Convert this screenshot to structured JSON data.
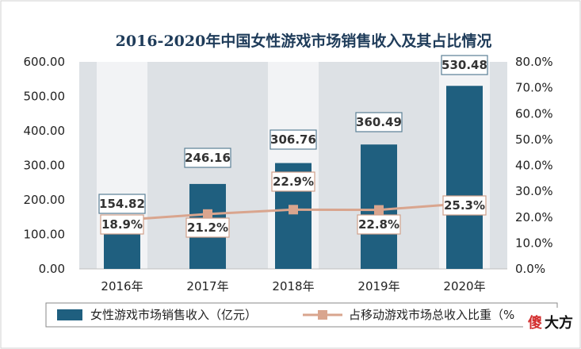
{
  "chart_data": {
    "type": "bar",
    "title": "2016-2020年中国女性游戏市场销售收入及其占比情况",
    "categories": [
      "2016年",
      "2017年",
      "2018年",
      "2019年",
      "2020年"
    ],
    "series": [
      {
        "name": "女性游戏市场销售收入（亿元）",
        "type": "bar",
        "axis": "left",
        "values": [
          154.82,
          246.16,
          306.76,
          360.49,
          530.48
        ],
        "labels": [
          "154.82",
          "246.16",
          "306.76",
          "360.49",
          "530.48"
        ],
        "color": "#1f5f7f"
      },
      {
        "name": "占移动游戏市场总收入比重（%",
        "type": "line",
        "axis": "right",
        "values": [
          18.9,
          21.2,
          22.9,
          22.8,
          25.3
        ],
        "labels": [
          "18.9%",
          "21.2%",
          "22.9%",
          "22.8%",
          "25.3%"
        ],
        "color": "#d9a58e"
      }
    ],
    "y_left": {
      "min": 0,
      "max": 600,
      "step": 100,
      "tick_labels": [
        "0.00",
        "100.00",
        "200.00",
        "300.00",
        "400.00",
        "500.00",
        "600.00"
      ]
    },
    "y_right": {
      "min": 0,
      "max": 80,
      "step": 10,
      "tick_labels": [
        "0.0%",
        "10.0%",
        "20.0%",
        "30.0%",
        "40.0%",
        "50.0%",
        "60.0%",
        "70.0%",
        "80.0%"
      ]
    },
    "grid": false,
    "legend_position": "bottom"
  },
  "watermark": {
    "char1": "傻",
    "rest": "大方"
  },
  "colors": {
    "bar": "#1f5f7f",
    "line": "#d9a58e",
    "plot_bg": "#dde1e5",
    "stripe": "#f4f5f6",
    "title": "#1f3c5a",
    "watermark_red": "#d32f2f"
  }
}
